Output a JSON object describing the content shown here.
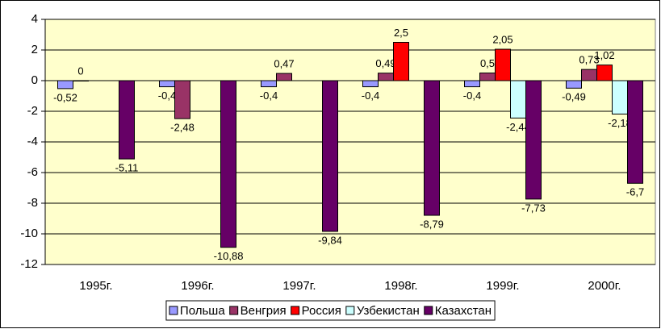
{
  "chart_data": {
    "type": "bar",
    "categories": [
      "1995г.",
      "1996г.",
      "1997г.",
      "1998г.",
      "1999г.",
      "2000г."
    ],
    "series": [
      {
        "name": "Польша",
        "color": "#9999ff",
        "values": [
          -0.52,
          -0.4,
          -0.4,
          -0.4,
          -0.4,
          -0.49
        ],
        "value_labels": [
          "-0,52",
          "-0,4",
          "-0,4",
          "-0,4",
          "-0,4",
          "-0,49"
        ]
      },
      {
        "name": "Венгрия",
        "color": "#993366",
        "values": [
          0,
          -2.48,
          0.47,
          0.49,
          0.5,
          0.73
        ],
        "value_labels": [
          "0",
          "-2,48",
          "0,47",
          "0,49",
          "0,5",
          "0,73"
        ]
      },
      {
        "name": "Россия",
        "color": "#ff0000",
        "values": [
          null,
          null,
          null,
          2.5,
          2.05,
          1.02
        ],
        "value_labels": [
          null,
          null,
          null,
          "2,5",
          "2,05",
          "1,02"
        ]
      },
      {
        "name": "Узбекистан",
        "color": "#ccffff",
        "values": [
          null,
          null,
          null,
          null,
          -2.44,
          -2.18
        ],
        "value_labels": [
          null,
          null,
          null,
          null,
          "-2,44",
          "-2,18"
        ]
      },
      {
        "name": "Казахстан",
        "color": "#660066",
        "values": [
          -5.11,
          -10.88,
          -9.84,
          -8.79,
          -7.73,
          -6.7
        ],
        "value_labels": [
          "-5,11",
          "-10,88",
          "-9,84",
          "-8,79",
          "-7,73",
          "-6,7"
        ]
      }
    ],
    "ylim": [
      -12,
      4
    ],
    "yticks": [
      -12,
      -10,
      -8,
      -6,
      -4,
      -2,
      0,
      2,
      4
    ],
    "grid": true,
    "legend": "bottom",
    "plot_background": "#ffffcc"
  }
}
